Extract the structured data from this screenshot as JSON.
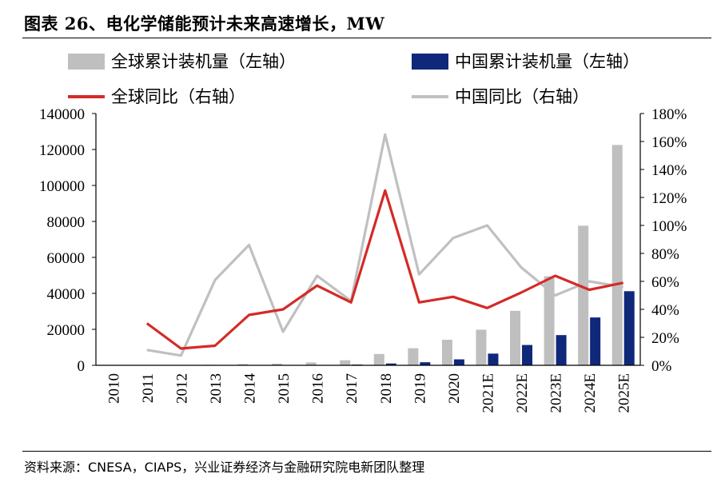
{
  "title": "图表 26、电化学储能预计未来高速增长，MW",
  "source": "资料来源：CNESA，CIAPS，兴业证券经济与金融研究院电新团队整理",
  "colors": {
    "global_bar": "#bfbfbf",
    "china_bar": "#10287a",
    "global_line": "#d42a27",
    "china_line": "#c0c0c0",
    "axis": "#000000"
  },
  "chart_data": {
    "type": "bar",
    "title": "电化学储能预计未来高速增长，MW",
    "categories": [
      "2010",
      "2011",
      "2012",
      "2013",
      "2014",
      "2015",
      "2016",
      "2017",
      "2018",
      "2019",
      "2020",
      "2021E",
      "2022E",
      "2023E",
      "2024E",
      "2025E"
    ],
    "left_axis": {
      "ylim": [
        0,
        140000
      ],
      "ticks": [
        "140000",
        "120000",
        "100000",
        "80000",
        "60000",
        "40000",
        "20000",
        "0"
      ]
    },
    "right_axis": {
      "ylim": [
        0,
        180
      ],
      "unit": "%",
      "ticks": [
        "180%",
        "160%",
        "140%",
        "120%",
        "100%",
        "80%",
        "60%",
        "40%",
        "20%",
        "0%"
      ]
    },
    "series": [
      {
        "name": "全球累计装机量（左轴）",
        "kind": "bar",
        "axis": "left",
        "values": [
          0,
          100,
          200,
          300,
          700,
          900,
          1600,
          2800,
          6300,
          9500,
          14200,
          19800,
          30300,
          49500,
          77600,
          122500
        ]
      },
      {
        "name": "中国累计装机量（左轴）",
        "kind": "bar",
        "axis": "left",
        "values": [
          0,
          0,
          0,
          0,
          0,
          100,
          200,
          400,
          1000,
          1700,
          3300,
          6500,
          11300,
          16800,
          26600,
          41200
        ]
      },
      {
        "name": "全球同比（右轴）",
        "kind": "line",
        "axis": "right",
        "values": [
          null,
          30,
          12,
          14,
          36,
          40,
          57,
          45,
          125,
          45,
          49,
          41,
          52,
          64,
          54,
          59
        ]
      },
      {
        "name": "中国同比（右轴）",
        "kind": "line",
        "axis": "right",
        "values": [
          null,
          11,
          7,
          61,
          86,
          24,
          64,
          46,
          165,
          65,
          91,
          100,
          70,
          50,
          60,
          56
        ]
      }
    ],
    "legend": [
      "全球累计装机量（左轴）",
      "中国累计装机量（左轴）",
      "全球同比（右轴）",
      "中国同比（右轴）"
    ]
  }
}
